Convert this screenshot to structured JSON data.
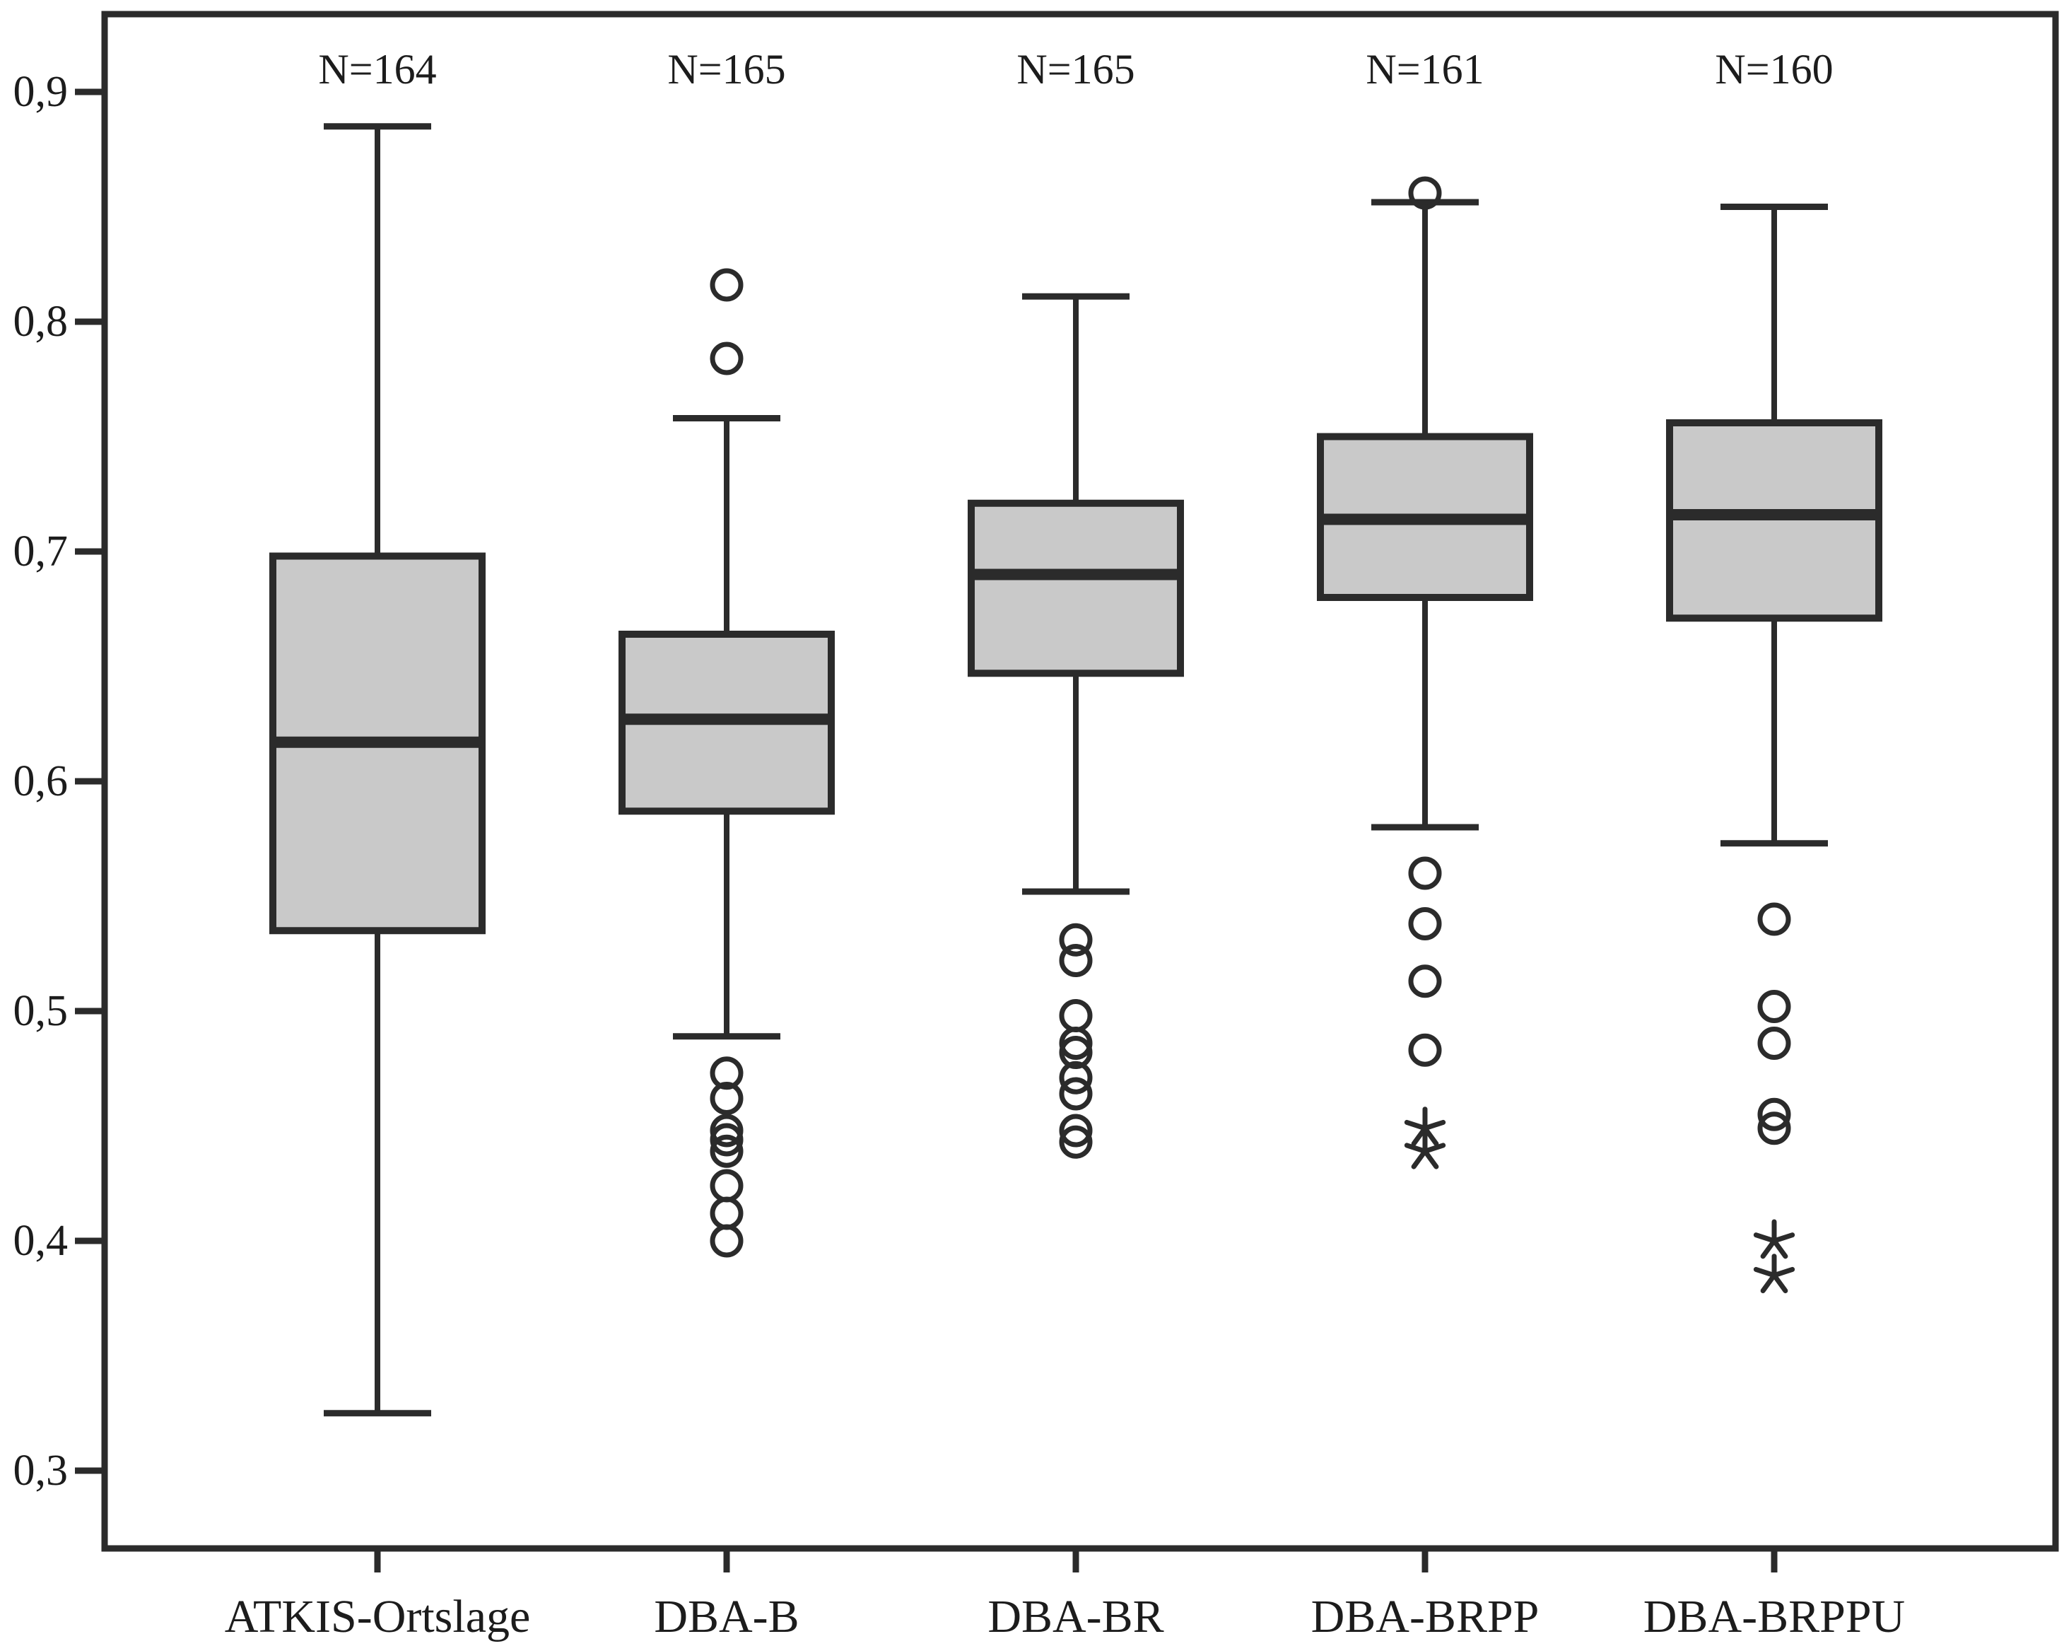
{
  "chart_data": {
    "type": "box",
    "title": "",
    "xlabel": "",
    "ylabel": "",
    "ylim": [
      0.255,
      0.935
    ],
    "grid": false,
    "y_ticks": [
      {
        "label": "0,9",
        "value": 0.9
      },
      {
        "label": "0,8",
        "value": 0.8
      },
      {
        "label": "0,7",
        "value": 0.7
      },
      {
        "label": "0,6",
        "value": 0.6
      },
      {
        "label": "0,5",
        "value": 0.5
      },
      {
        "label": "0,4",
        "value": 0.4
      },
      {
        "label": "0,3",
        "value": 0.3
      }
    ],
    "series": [
      {
        "category": "ATKIS-Ortslage",
        "n_label": "N=164",
        "whisker_low": 0.325,
        "q1": 0.535,
        "median": 0.617,
        "q3": 0.698,
        "whisker_high": 0.885,
        "outliers_circle": [],
        "outliers_asterisk": []
      },
      {
        "category": "DBA-B",
        "n_label": "N=165",
        "whisker_low": 0.489,
        "q1": 0.587,
        "median": 0.627,
        "q3": 0.664,
        "whisker_high": 0.758,
        "outliers_circle": [
          0.816,
          0.784,
          0.473,
          0.462,
          0.448,
          0.444,
          0.439,
          0.424,
          0.412,
          0.4
        ],
        "outliers_asterisk": []
      },
      {
        "category": "DBA-BR",
        "n_label": "N=165",
        "whisker_low": 0.552,
        "q1": 0.647,
        "median": 0.69,
        "q3": 0.721,
        "whisker_high": 0.811,
        "outliers_circle": [
          0.531,
          0.522,
          0.498,
          0.486,
          0.482,
          0.471,
          0.464,
          0.448,
          0.443
        ],
        "outliers_asterisk": []
      },
      {
        "category": "DBA-BRPP",
        "n_label": "N=161",
        "whisker_low": 0.58,
        "q1": 0.68,
        "median": 0.714,
        "q3": 0.75,
        "whisker_high": 0.852,
        "outliers_circle": [
          0.856,
          0.56,
          0.538,
          0.513,
          0.483
        ],
        "outliers_asterisk": [
          0.449,
          0.439
        ]
      },
      {
        "category": "DBA-BRPPU",
        "n_label": "N=160",
        "whisker_low": 0.573,
        "q1": 0.671,
        "median": 0.716,
        "q3": 0.756,
        "whisker_high": 0.85,
        "outliers_circle": [
          0.54,
          0.502,
          0.486,
          0.455,
          0.449
        ],
        "outliers_asterisk": [
          0.4,
          0.385
        ]
      }
    ],
    "colors": {
      "box_fill": "#c9c9c9",
      "line": "#2b2b2b",
      "text": "#1c1c1c",
      "background": "#ffffff"
    }
  }
}
